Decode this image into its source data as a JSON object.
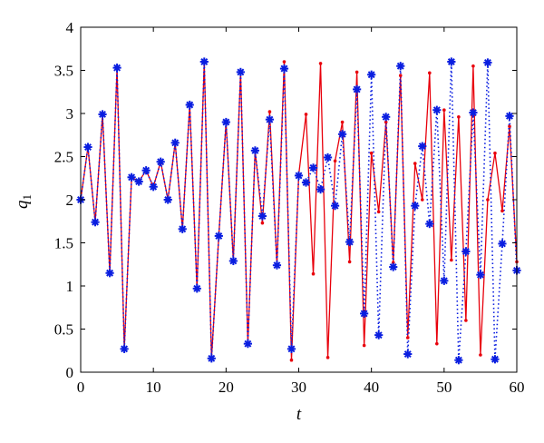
{
  "chart_data": {
    "type": "line",
    "xlabel": "t",
    "ylabel": {
      "main": "q",
      "sub": "1"
    },
    "xlim": [
      0,
      60
    ],
    "ylim": [
      0,
      4
    ],
    "xticks": [
      "0",
      "10",
      "20",
      "30",
      "40",
      "50",
      "60"
    ],
    "yticks": [
      "0",
      "0.5",
      "1",
      "1.5",
      "2",
      "2.5",
      "3",
      "3.5",
      "4"
    ],
    "grid": false,
    "legend": "none",
    "series": [
      {
        "style": "solid line with dot markers",
        "color": "#e8000b",
        "x": [
          0,
          1,
          2,
          3,
          4,
          5,
          6,
          7,
          8,
          9,
          10,
          11,
          12,
          13,
          14,
          15,
          16,
          17,
          18,
          19,
          20,
          21,
          22,
          23,
          24,
          25,
          26,
          27,
          28,
          29,
          30,
          31,
          32,
          33,
          34,
          35,
          36,
          37,
          38,
          39,
          40,
          41,
          42,
          43,
          44,
          45,
          46,
          47,
          48,
          49,
          50,
          51,
          52,
          53,
          54,
          55,
          56,
          57,
          58,
          59,
          60
        ],
        "y": [
          2.0,
          2.61,
          1.74,
          2.99,
          1.15,
          3.53,
          0.27,
          2.26,
          2.21,
          2.34,
          2.15,
          2.44,
          2.0,
          2.66,
          1.66,
          3.1,
          0.97,
          3.6,
          0.16,
          1.58,
          2.9,
          1.29,
          3.48,
          0.33,
          2.57,
          1.73,
          3.02,
          1.24,
          3.6,
          0.14,
          2.29,
          2.99,
          1.14,
          3.58,
          0.17,
          2.45,
          2.9,
          1.28,
          3.48,
          0.31,
          2.54,
          1.86,
          2.9,
          1.27,
          3.44,
          0.4,
          2.42,
          2.0,
          3.47,
          0.33,
          3.04,
          1.3,
          2.96,
          0.6,
          3.55,
          0.2,
          2.0,
          2.54,
          1.87,
          2.85,
          1.28
        ]
      },
      {
        "style": "dotted line with asterisk markers",
        "color": "#0a1ee0",
        "x": [
          0,
          1,
          2,
          3,
          4,
          5,
          6,
          7,
          8,
          9,
          10,
          11,
          12,
          13,
          14,
          15,
          16,
          17,
          18,
          19,
          20,
          21,
          22,
          23,
          24,
          25,
          26,
          27,
          28,
          29,
          30,
          31,
          32,
          33,
          34,
          35,
          36,
          37,
          38,
          39,
          40,
          41,
          42,
          43,
          44,
          45,
          46,
          47,
          48,
          49,
          50,
          51,
          52,
          53,
          54,
          55,
          56,
          57,
          58,
          59,
          60
        ],
        "y": [
          2.0,
          2.61,
          1.74,
          2.99,
          1.15,
          3.53,
          0.27,
          2.26,
          2.21,
          2.34,
          2.15,
          2.44,
          2.0,
          2.66,
          1.66,
          3.1,
          0.97,
          3.6,
          0.16,
          1.58,
          2.9,
          1.29,
          3.48,
          0.33,
          2.57,
          1.81,
          2.93,
          1.24,
          3.52,
          0.27,
          2.28,
          2.2,
          2.37,
          2.12,
          2.49,
          1.93,
          2.76,
          1.51,
          3.28,
          0.68,
          3.45,
          0.43,
          2.96,
          1.22,
          3.55,
          0.21,
          1.93,
          2.62,
          1.72,
          3.04,
          1.06,
          3.6,
          0.14,
          1.4,
          3.01,
          1.13,
          3.59,
          0.15,
          1.49,
          2.97,
          1.18
        ]
      }
    ]
  }
}
